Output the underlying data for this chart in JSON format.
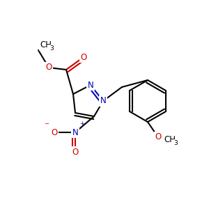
{
  "bg_color": "#ffffff",
  "bond_color": "#000000",
  "bond_width": 1.5,
  "atom_colors": {
    "N": "#0000bb",
    "O": "#cc0000",
    "C": "#000000"
  },
  "font_size_main": 8.5,
  "font_size_sub": 6.5,
  "font_size_super": 6.0
}
